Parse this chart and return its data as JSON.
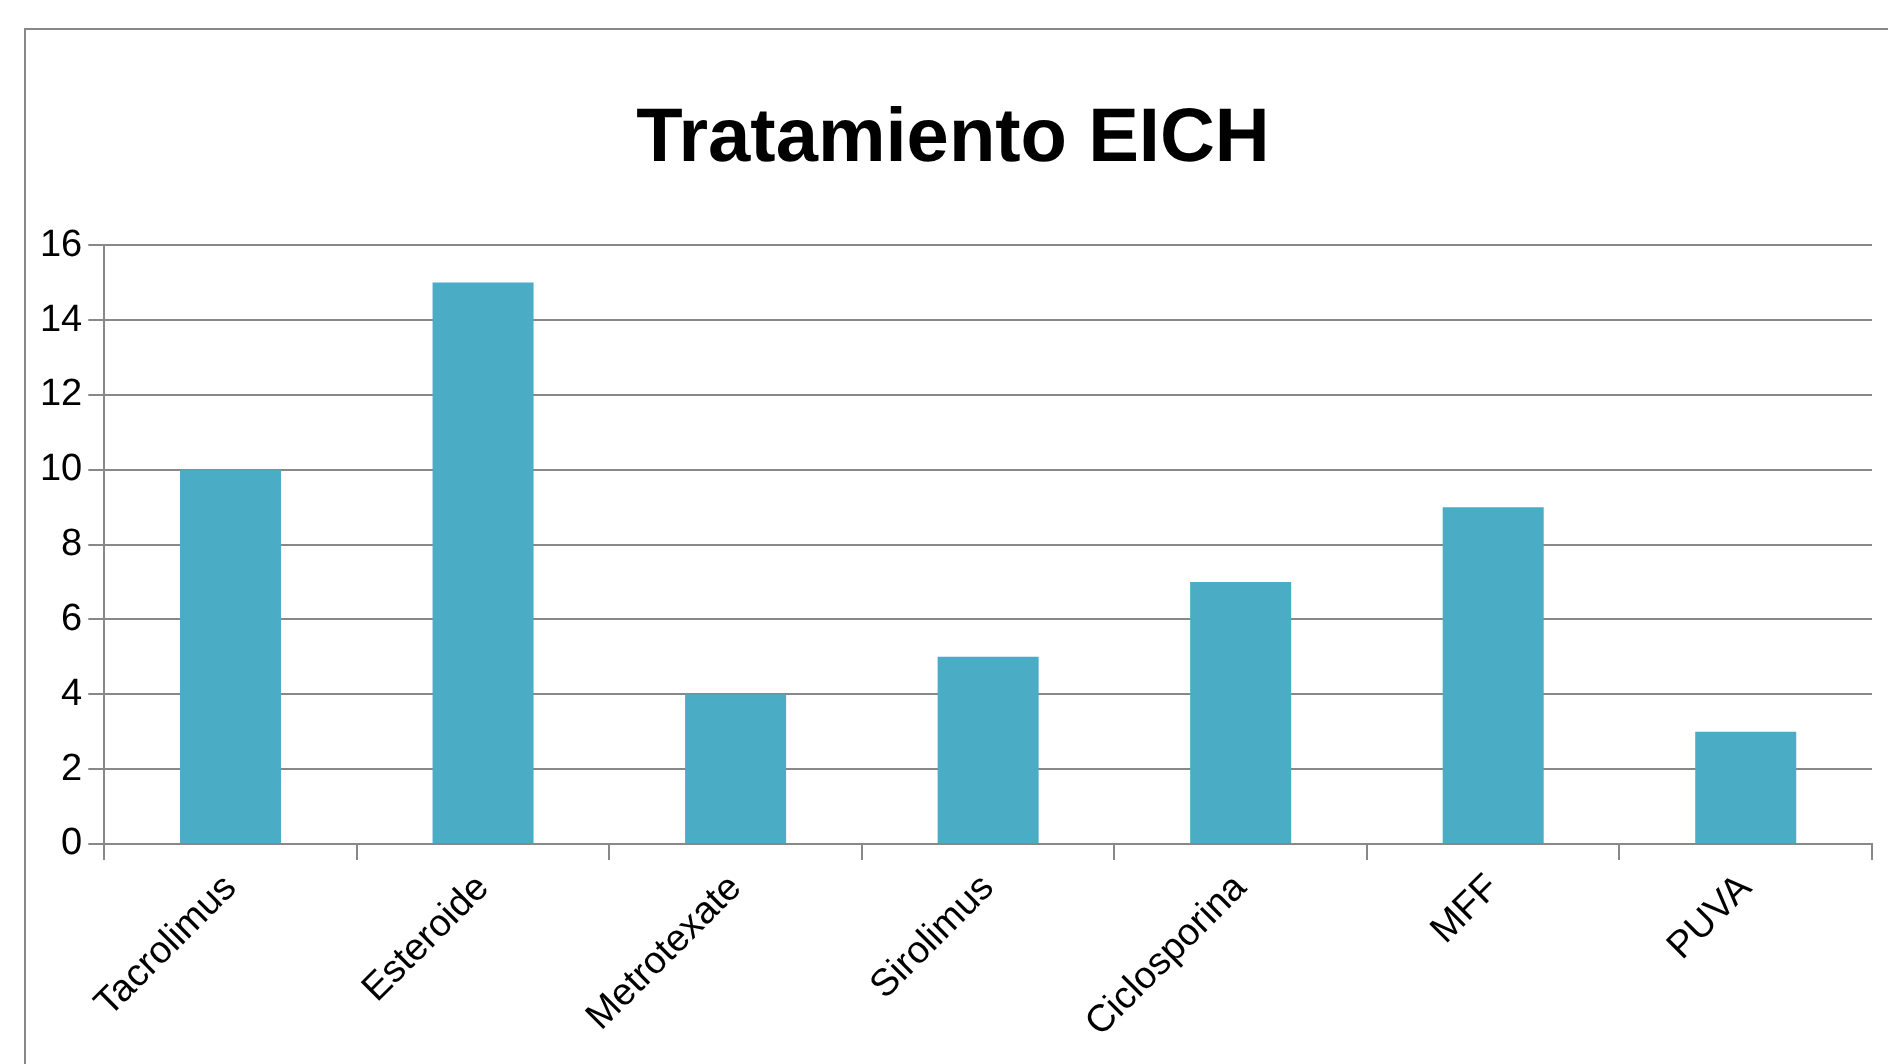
{
  "chart_data": {
    "type": "bar",
    "title": "Tratamiento EICH",
    "categories": [
      "Tacrolimus",
      "Esteroide",
      "Metrotexate",
      "Sirolimus",
      "Ciclosporina",
      "MFF",
      "PUVA"
    ],
    "values": [
      10,
      15,
      4,
      5,
      7,
      9,
      3
    ],
    "color": "#4bacc6",
    "ylim": [
      0,
      16
    ],
    "yticks": [
      0,
      2,
      4,
      6,
      8,
      10,
      12,
      14,
      16
    ],
    "grid": "y"
  }
}
